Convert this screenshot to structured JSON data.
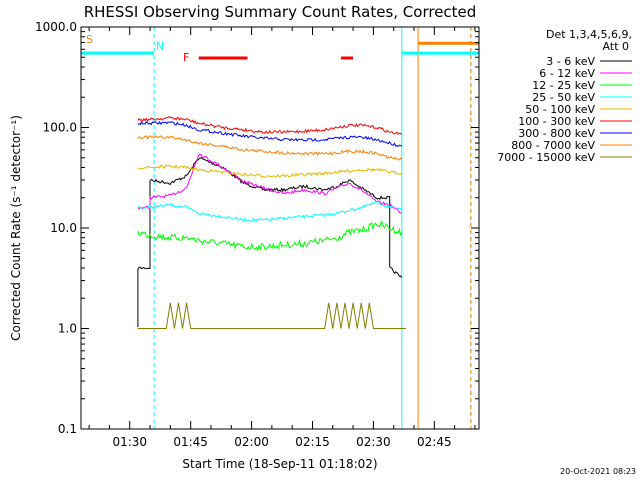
{
  "chart_data": {
    "type": "line",
    "title": "RHESSI Observing Summary Count Rates, Corrected",
    "xlabel": "Start Time (18-Sep-11 01:18:02)",
    "ylabel": "Corrected Count Rate (s⁻¹ detector⁻¹)",
    "x_unit": "minutes after 01:18:02",
    "xlim": [
      0,
      98
    ],
    "ylim": [
      0.1,
      1000
    ],
    "y_scale": "log",
    "x_ticks": [
      {
        "value": 12,
        "label": "01:30"
      },
      {
        "value": 27,
        "label": "01:45"
      },
      {
        "value": 42,
        "label": "02:00"
      },
      {
        "value": 57,
        "label": "02:15"
      },
      {
        "value": 72,
        "label": "02:30"
      },
      {
        "value": 87,
        "label": "02:45"
      }
    ],
    "y_ticks": [
      {
        "value": 0.1,
        "label": "0.1"
      },
      {
        "value": 1,
        "label": "1.0"
      },
      {
        "value": 10,
        "label": "10.0"
      },
      {
        "value": 100,
        "label": "100.0"
      },
      {
        "value": 1000,
        "label": "1000.0"
      }
    ],
    "legend": {
      "header_lines": [
        "Det 1,3,4,5,6,9,",
        "Att 0"
      ],
      "placement": "right"
    },
    "series": [
      {
        "name": "3 - 6 keV",
        "color": "#000000",
        "points": [
          [
            14,
            1
          ],
          [
            14,
            4
          ],
          [
            17,
            4
          ],
          [
            17,
            30
          ],
          [
            22,
            28
          ],
          [
            26,
            33
          ],
          [
            29,
            50
          ],
          [
            35,
            40
          ],
          [
            40,
            28
          ],
          [
            45,
            24
          ],
          [
            50,
            24
          ],
          [
            55,
            26
          ],
          [
            60,
            24
          ],
          [
            63,
            26
          ],
          [
            66,
            30
          ],
          [
            69,
            25
          ],
          [
            73,
            20
          ],
          [
            76,
            20
          ],
          [
            76,
            4
          ],
          [
            79,
            3.2
          ]
        ]
      },
      {
        "name": "6 - 12 keV",
        "color": "#ff00ff",
        "points": [
          [
            14,
            16
          ],
          [
            17,
            16
          ],
          [
            17,
            20
          ],
          [
            22,
            21
          ],
          [
            26,
            25
          ],
          [
            29,
            55
          ],
          [
            35,
            40
          ],
          [
            40,
            29
          ],
          [
            45,
            25
          ],
          [
            50,
            22
          ],
          [
            55,
            24
          ],
          [
            60,
            22
          ],
          [
            63,
            25
          ],
          [
            66,
            28
          ],
          [
            69,
            24
          ],
          [
            73,
            18
          ],
          [
            76,
            17
          ],
          [
            78,
            15
          ],
          [
            79,
            14
          ]
        ]
      },
      {
        "name": "12 - 25 keV",
        "color": "#00ff00",
        "points": [
          [
            14,
            9
          ],
          [
            17,
            8.5
          ],
          [
            22,
            8
          ],
          [
            26,
            8
          ],
          [
            29,
            7.5
          ],
          [
            35,
            7
          ],
          [
            40,
            6.5
          ],
          [
            45,
            6.5
          ],
          [
            50,
            6.8
          ],
          [
            55,
            7
          ],
          [
            60,
            7.5
          ],
          [
            63,
            8
          ],
          [
            66,
            9
          ],
          [
            69,
            9.5
          ],
          [
            73,
            11
          ],
          [
            76,
            10
          ],
          [
            79,
            9
          ]
        ]
      },
      {
        "name": "25 - 50 keV",
        "color": "#00ffff",
        "points": [
          [
            14,
            16
          ],
          [
            17,
            16
          ],
          [
            22,
            17
          ],
          [
            26,
            16
          ],
          [
            29,
            14
          ],
          [
            35,
            13
          ],
          [
            40,
            12
          ],
          [
            45,
            12
          ],
          [
            50,
            12.5
          ],
          [
            55,
            13
          ],
          [
            60,
            13.5
          ],
          [
            63,
            14
          ],
          [
            66,
            15
          ],
          [
            69,
            16
          ],
          [
            73,
            18
          ],
          [
            76,
            16
          ],
          [
            79,
            15
          ]
        ]
      },
      {
        "name": "50 - 100 keV",
        "color": "#e6b800",
        "points": [
          [
            14,
            40
          ],
          [
            17,
            40
          ],
          [
            22,
            41
          ],
          [
            26,
            40
          ],
          [
            29,
            38
          ],
          [
            35,
            36
          ],
          [
            40,
            34
          ],
          [
            45,
            33
          ],
          [
            50,
            33
          ],
          [
            55,
            34
          ],
          [
            60,
            35
          ],
          [
            63,
            36
          ],
          [
            66,
            37
          ],
          [
            69,
            38
          ],
          [
            73,
            38
          ],
          [
            76,
            36
          ],
          [
            79,
            35
          ]
        ]
      },
      {
        "name": "100 - 300 keV",
        "color": "#ff0000",
        "points": [
          [
            14,
            120
          ],
          [
            17,
            120
          ],
          [
            22,
            125
          ],
          [
            26,
            120
          ],
          [
            29,
            110
          ],
          [
            35,
            100
          ],
          [
            40,
            95
          ],
          [
            45,
            90
          ],
          [
            50,
            90
          ],
          [
            55,
            92
          ],
          [
            60,
            95
          ],
          [
            63,
            100
          ],
          [
            66,
            105
          ],
          [
            69,
            105
          ],
          [
            73,
            100
          ],
          [
            76,
            90
          ],
          [
            79,
            85
          ]
        ]
      },
      {
        "name": "300 - 800 keV",
        "color": "#0000ff",
        "points": [
          [
            14,
            110
          ],
          [
            17,
            110
          ],
          [
            22,
            112
          ],
          [
            26,
            105
          ],
          [
            29,
            95
          ],
          [
            35,
            88
          ],
          [
            40,
            82
          ],
          [
            45,
            78
          ],
          [
            50,
            76
          ],
          [
            55,
            75
          ],
          [
            60,
            76
          ],
          [
            63,
            78
          ],
          [
            66,
            80
          ],
          [
            69,
            80
          ],
          [
            73,
            75
          ],
          [
            76,
            70
          ],
          [
            79,
            65
          ]
        ]
      },
      {
        "name": "800 - 7000 keV",
        "color": "#ff8000",
        "points": [
          [
            14,
            80
          ],
          [
            17,
            80
          ],
          [
            22,
            80
          ],
          [
            26,
            75
          ],
          [
            29,
            70
          ],
          [
            35,
            65
          ],
          [
            40,
            60
          ],
          [
            45,
            58
          ],
          [
            50,
            56
          ],
          [
            55,
            55
          ],
          [
            60,
            55
          ],
          [
            63,
            56
          ],
          [
            66,
            58
          ],
          [
            69,
            58
          ],
          [
            73,
            55
          ],
          [
            76,
            50
          ],
          [
            79,
            48
          ]
        ]
      },
      {
        "name": "7000 - 15000 keV",
        "color": "#808000",
        "points": [
          [
            14,
            1
          ],
          [
            21,
            1
          ],
          [
            22,
            1.8
          ],
          [
            23,
            1
          ],
          [
            24,
            1.8
          ],
          [
            25,
            1
          ],
          [
            26,
            1.8
          ],
          [
            27,
            1
          ],
          [
            28,
            1
          ],
          [
            50,
            1
          ],
          [
            60,
            1
          ],
          [
            61,
            1.8
          ],
          [
            62,
            1
          ],
          [
            63,
            1.8
          ],
          [
            64,
            1
          ],
          [
            65,
            1.8
          ],
          [
            66,
            1
          ],
          [
            67,
            1.8
          ],
          [
            68,
            1
          ],
          [
            69,
            1.8
          ],
          [
            70,
            1
          ],
          [
            71,
            1.8
          ],
          [
            72,
            1
          ],
          [
            80,
            1
          ]
        ]
      }
    ],
    "flags": [
      {
        "label": "S",
        "color": "#ff8000",
        "x_start": 0,
        "x_end": 18,
        "level": 550,
        "show_label": true
      },
      {
        "label": "N",
        "color": "#00ffff",
        "x_start": 0,
        "x_end": 18,
        "level": 550,
        "show_label": true
      },
      {
        "label": "F",
        "color": "#ff0000",
        "x_start": 29,
        "x_end": 41,
        "level": 1,
        "show_label": true
      },
      {
        "label": "F",
        "color": "#ff0000",
        "x_start": 64,
        "x_end": 67,
        "level": 1,
        "show_label": false
      },
      {
        "label": "",
        "color": "#00ffff",
        "x_start": 79,
        "x_end": 98,
        "level": 550,
        "show_label": false
      },
      {
        "label": "",
        "color": "#ff8000",
        "x_start": 83,
        "x_end": 98,
        "level": 690,
        "show_label": false
      }
    ],
    "vlines": [
      {
        "x": 0,
        "color": "#00ffff",
        "style": "dashed"
      },
      {
        "x": 18,
        "color": "#00ffff",
        "style": "dashed"
      },
      {
        "x": 79,
        "color": "#00ffff",
        "style": "solid"
      },
      {
        "x": 83,
        "color": "#ff8000",
        "style": "solid"
      },
      {
        "x": 96,
        "color": "#00ffff",
        "style": "dashed"
      },
      {
        "x": 96,
        "color": "#ff8000",
        "style": "dashed"
      }
    ]
  },
  "timestamp": "20-Oct-2021 08:23"
}
